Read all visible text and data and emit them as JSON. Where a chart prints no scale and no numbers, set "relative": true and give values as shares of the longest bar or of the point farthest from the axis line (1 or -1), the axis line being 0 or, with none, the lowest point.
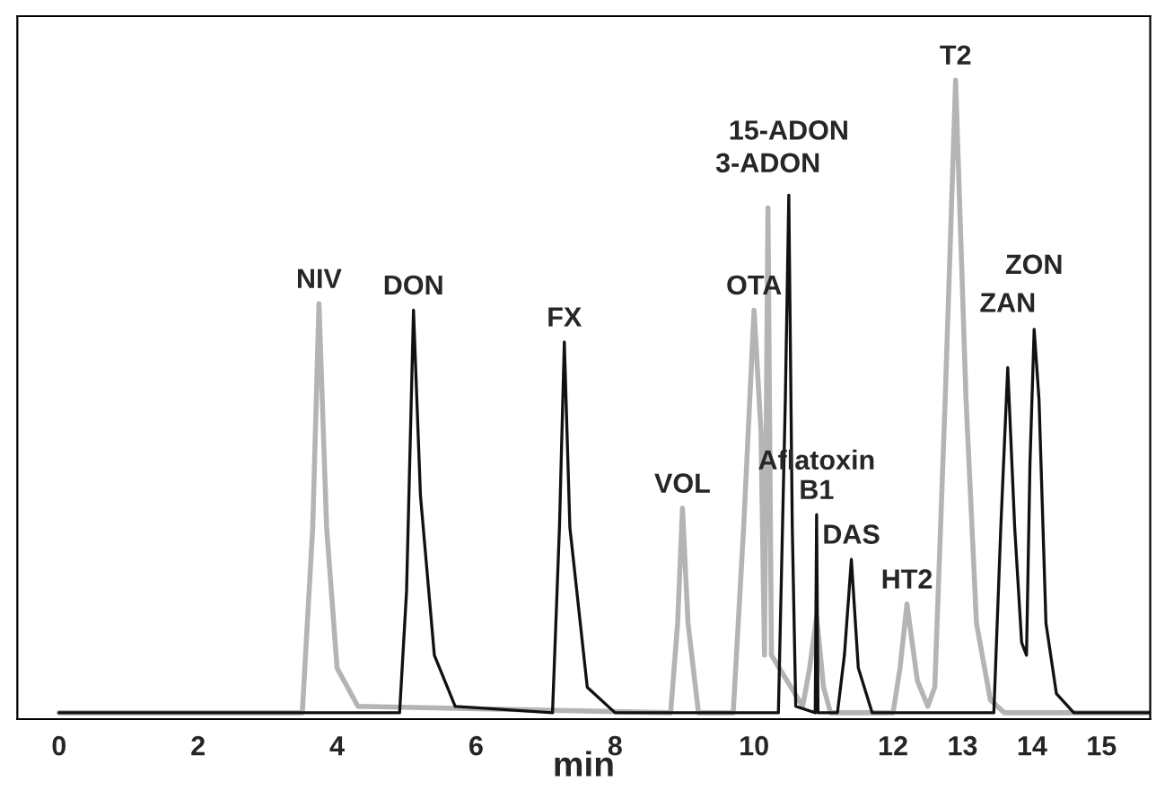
{
  "chart_data": {
    "type": "line",
    "relative": true,
    "xlabel": "min",
    "xlim": [
      -0.6,
      15.7
    ],
    "xticks": [
      0,
      2,
      4,
      6,
      8,
      10,
      12,
      13,
      14,
      15
    ],
    "tick_labels": "x",
    "grid": false,
    "legend": false,
    "marker": "none",
    "line_style": "solid",
    "series": [
      {
        "color": "#b4b4b4",
        "x": [
          0,
          3.5,
          3.65,
          3.74,
          3.85,
          4.0,
          4.3,
          8.8,
          8.9,
          8.97,
          9.05,
          9.2,
          9.7,
          9.85,
          10.0,
          10.1,
          10.15,
          10.2,
          10.25,
          10.7,
          10.8,
          10.9,
          11.0,
          11.1,
          12.0,
          12.1,
          12.2,
          12.35,
          12.5,
          12.6,
          12.75,
          12.9,
          13.05,
          13.2,
          13.4,
          13.6,
          15.7
        ],
        "values": [
          0.01,
          0.01,
          0.3,
          0.65,
          0.3,
          0.08,
          0.02,
          0.01,
          0.15,
          0.33,
          0.15,
          0.01,
          0.01,
          0.3,
          0.64,
          0.45,
          0.1,
          0.8,
          0.1,
          0.02,
          0.08,
          0.16,
          0.05,
          0.01,
          0.01,
          0.08,
          0.18,
          0.06,
          0.02,
          0.05,
          0.5,
          1.0,
          0.5,
          0.15,
          0.03,
          0.01,
          0.01
        ]
      },
      {
        "color": "#111111",
        "x": [
          0,
          4.9,
          5.0,
          5.1,
          5.2,
          5.4,
          5.7,
          7.1,
          7.2,
          7.27,
          7.35,
          7.6,
          8.0,
          10.35,
          10.45,
          10.5,
          10.55,
          10.6,
          10.88,
          10.9,
          10.92,
          11.2,
          11.3,
          11.4,
          11.5,
          11.7,
          13.45,
          13.55,
          13.65,
          13.75,
          13.85,
          13.92,
          13.97,
          14.03,
          14.1,
          14.2,
          14.35,
          14.6,
          15.7
        ],
        "values": [
          0.01,
          0.01,
          0.2,
          0.64,
          0.35,
          0.1,
          0.02,
          0.01,
          0.3,
          0.59,
          0.3,
          0.05,
          0.01,
          0.01,
          0.5,
          0.82,
          0.3,
          0.02,
          0.01,
          0.32,
          0.01,
          0.01,
          0.1,
          0.25,
          0.08,
          0.01,
          0.01,
          0.3,
          0.55,
          0.3,
          0.12,
          0.1,
          0.4,
          0.61,
          0.5,
          0.15,
          0.04,
          0.01,
          0.01
        ]
      }
    ],
    "annotations": [
      {
        "text": "NIV",
        "x": 3.74,
        "y": 0.65
      },
      {
        "text": "DON",
        "x": 5.1,
        "y": 0.64
      },
      {
        "text": "FX",
        "x": 7.27,
        "y": 0.59
      },
      {
        "text": "VOL",
        "x": 8.97,
        "y": 0.33
      },
      {
        "text": "OTA",
        "x": 10.0,
        "y": 0.64
      },
      {
        "text": "3-ADON",
        "x": 10.2,
        "y": 0.8
      },
      {
        "text": "15-ADON",
        "x": 10.5,
        "y": 0.82
      },
      {
        "text": "Aflatoxin\nB1",
        "x": 10.9,
        "y": 0.32
      },
      {
        "text": "DAS",
        "x": 11.4,
        "y": 0.25
      },
      {
        "text": "HT2",
        "x": 12.2,
        "y": 0.18
      },
      {
        "text": "T2",
        "x": 12.9,
        "y": 1.0
      },
      {
        "text": "ZAN",
        "x": 13.65,
        "y": 0.55
      },
      {
        "text": "ZON",
        "x": 14.03,
        "y": 0.61
      }
    ]
  }
}
